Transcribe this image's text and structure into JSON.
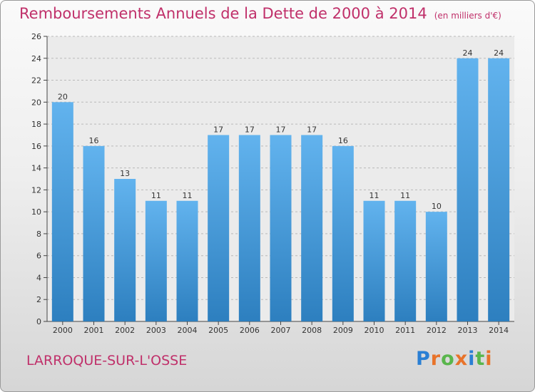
{
  "title": "Remboursements Annuels de la Dette de 2000 à 2014",
  "subtitle": "(en milliers d'€)",
  "place": "LARROQUE-SUR-L'OSSE",
  "logo": {
    "letters": [
      "P",
      "r",
      "o",
      "x",
      "i",
      "t",
      "i"
    ],
    "colors": [
      "#2a7fd4",
      "#e8732a",
      "#59b64c",
      "#e8732a",
      "#2a7fd4",
      "#59b64c",
      "#e8732a"
    ]
  },
  "colors": {
    "title": "#c0306a",
    "bar_top": "#62b3ee",
    "bar_bottom": "#2d7fbf",
    "axis": "#444444",
    "grid": "#b9b9b9"
  },
  "chart_data": {
    "type": "bar",
    "categories": [
      "2000",
      "2001",
      "2002",
      "2003",
      "2004",
      "2005",
      "2006",
      "2007",
      "2008",
      "2009",
      "2010",
      "2011",
      "2012",
      "2013",
      "2014"
    ],
    "values": [
      20,
      16,
      13,
      11,
      11,
      17,
      17,
      17,
      17,
      16,
      11,
      11,
      10,
      24,
      24
    ],
    "yticks": [
      0,
      2,
      4,
      6,
      8,
      10,
      12,
      14,
      16,
      18,
      20,
      22,
      24,
      26
    ],
    "ylim": [
      0,
      26
    ],
    "grid": true,
    "data_labels": true
  }
}
